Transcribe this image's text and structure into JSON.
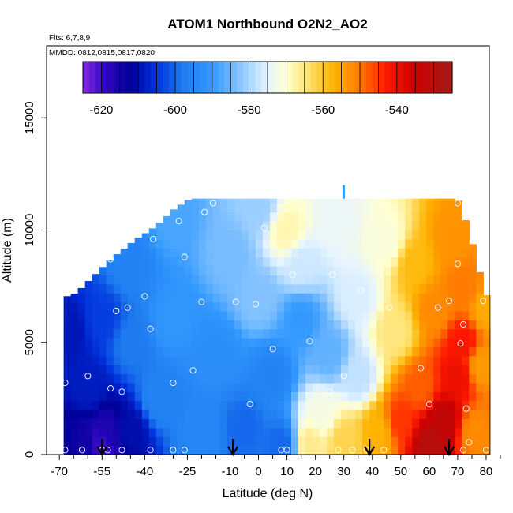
{
  "chart_data": {
    "type": "heatmap",
    "title": "ATOM1 Northbound O2N2_AO2",
    "flights_label": "Flts: 6,7,8,9",
    "dates_label": "MMDD: 0812,0815,0817,0820",
    "xlabel": "Latitude (deg N)",
    "ylabel": "Altitude (m)",
    "xlim": [
      -70,
      85
    ],
    "ylim": [
      0,
      17500
    ],
    "x_ticks": [
      -70,
      -55,
      -40,
      -25,
      -10,
      0,
      10,
      20,
      30,
      40,
      50,
      60,
      70,
      80
    ],
    "x_tick_labels": [
      "-70",
      "-55",
      "-40",
      "-25",
      "-10",
      "0",
      "10",
      "20",
      "30",
      "40",
      "50",
      "60",
      "70",
      "80"
    ],
    "x_minor_ticks": [
      -65,
      -60,
      -50,
      -45,
      -35,
      -30,
      -20,
      -15,
      -5,
      5,
      15,
      25,
      35,
      45,
      55,
      65,
      75,
      85
    ],
    "y_ticks": [
      0,
      5000,
      10000,
      15000
    ],
    "y_tick_labels": [
      "0",
      "5000",
      "10000",
      "15000"
    ],
    "colorbar": {
      "range": [
        -625,
        -525
      ],
      "ticks": [
        -620,
        -600,
        -580,
        -560,
        -540
      ],
      "tick_labels": [
        "-620",
        "-600",
        "-580",
        "-560",
        "-540"
      ],
      "stops": [
        {
          "v": -625,
          "c": "#8a2be2"
        },
        {
          "v": -620,
          "c": "#3a0ac8"
        },
        {
          "v": -612,
          "c": "#000099"
        },
        {
          "v": -605,
          "c": "#0033dd"
        },
        {
          "v": -598,
          "c": "#1e7cf0"
        },
        {
          "v": -590,
          "c": "#3399ff"
        },
        {
          "v": -582,
          "c": "#8ec8ff"
        },
        {
          "v": -575,
          "c": "#e6f4ff"
        },
        {
          "v": -570,
          "c": "#ffffd0"
        },
        {
          "v": -564,
          "c": "#ffe16e"
        },
        {
          "v": -557,
          "c": "#ffb300"
        },
        {
          "v": -550,
          "c": "#ff7a00"
        },
        {
          "v": -543,
          "c": "#ff1a00"
        },
        {
          "v": -535,
          "c": "#cc0000"
        },
        {
          "v": -525,
          "c": "#a31a1a"
        }
      ]
    },
    "profile_arrows_lat": [
      -55,
      -9,
      39,
      67
    ],
    "data_extent": {
      "lat_range": [
        -68.5,
        80.5
      ],
      "top_altitude_by_lat": [
        [
          -68.5,
          7000
        ],
        [
          -64,
          7200
        ],
        [
          -60,
          7700
        ],
        [
          -56,
          8200
        ],
        [
          -52,
          8700
        ],
        [
          -47,
          9200
        ],
        [
          -43,
          9600
        ],
        [
          -38,
          10000
        ],
        [
          -34,
          10400
        ],
        [
          -30,
          10900
        ],
        [
          -24,
          11400
        ],
        [
          70,
          11400
        ],
        [
          74,
          10000
        ],
        [
          78,
          8000
        ],
        [
          80.5,
          7000
        ]
      ]
    },
    "field_anchors": [
      {
        "lat": -68,
        "alt": 300,
        "value": -612
      },
      {
        "lat": -62,
        "alt": 400,
        "value": -614
      },
      {
        "lat": -55,
        "alt": 400,
        "value": -620
      },
      {
        "lat": -53,
        "alt": 800,
        "value": -616
      },
      {
        "lat": -60,
        "alt": 3000,
        "value": -608
      },
      {
        "lat": -66,
        "alt": 5500,
        "value": -609
      },
      {
        "lat": -55,
        "alt": 6000,
        "value": -604
      },
      {
        "lat": -45,
        "alt": 1000,
        "value": -610
      },
      {
        "lat": -45,
        "alt": 5000,
        "value": -598
      },
      {
        "lat": -45,
        "alt": 8500,
        "value": -596
      },
      {
        "lat": -35,
        "alt": 2500,
        "value": -596
      },
      {
        "lat": -30,
        "alt": 6000,
        "value": -591
      },
      {
        "lat": -30,
        "alt": 10500,
        "value": -588
      },
      {
        "lat": -20,
        "alt": 1000,
        "value": -595
      },
      {
        "lat": -15,
        "alt": 4500,
        "value": -593
      },
      {
        "lat": -10,
        "alt": 9000,
        "value": -584
      },
      {
        "lat": -5,
        "alt": 1200,
        "value": -600
      },
      {
        "lat": 0,
        "alt": 7000,
        "value": -583
      },
      {
        "lat": 0,
        "alt": 11000,
        "value": -581
      },
      {
        "lat": 5,
        "alt": 3500,
        "value": -596
      },
      {
        "lat": 8,
        "alt": 500,
        "value": -600
      },
      {
        "lat": 10,
        "alt": 10000,
        "value": -568
      },
      {
        "lat": 15,
        "alt": 6000,
        "value": -590
      },
      {
        "lat": 15,
        "alt": 8500,
        "value": -577
      },
      {
        "lat": 18,
        "alt": 500,
        "value": -566
      },
      {
        "lat": 22,
        "alt": 1800,
        "value": -572
      },
      {
        "lat": 25,
        "alt": 4500,
        "value": -586
      },
      {
        "lat": 28,
        "alt": 10500,
        "value": -574
      },
      {
        "lat": 30,
        "alt": 600,
        "value": -562
      },
      {
        "lat": 35,
        "alt": 3500,
        "value": -578
      },
      {
        "lat": 35,
        "alt": 7000,
        "value": -576
      },
      {
        "lat": 42,
        "alt": 1000,
        "value": -557
      },
      {
        "lat": 45,
        "alt": 9500,
        "value": -571
      },
      {
        "lat": 48,
        "alt": 5500,
        "value": -565
      },
      {
        "lat": 50,
        "alt": 1500,
        "value": -545
      },
      {
        "lat": 55,
        "alt": 8500,
        "value": -558
      },
      {
        "lat": 57,
        "alt": 3000,
        "value": -548
      },
      {
        "lat": 60,
        "alt": 500,
        "value": -530
      },
      {
        "lat": 62,
        "alt": 6500,
        "value": -552
      },
      {
        "lat": 65,
        "alt": 1500,
        "value": -532
      },
      {
        "lat": 68,
        "alt": 9500,
        "value": -553
      },
      {
        "lat": 70,
        "alt": 3500,
        "value": -540
      },
      {
        "lat": 72,
        "alt": 5000,
        "value": -542
      },
      {
        "lat": 72,
        "alt": 7500,
        "value": -550
      },
      {
        "lat": 76,
        "alt": 1000,
        "value": -552
      },
      {
        "lat": 78,
        "alt": 4000,
        "value": -554
      },
      {
        "lat": 80,
        "alt": 6500,
        "value": -556
      }
    ],
    "observation_points": [
      [
        -68,
        200
      ],
      [
        -68,
        3200
      ],
      [
        -60,
        3500
      ],
      [
        -62,
        200
      ],
      [
        -55,
        200
      ],
      [
        -53,
        200
      ],
      [
        -52,
        2950
      ],
      [
        -48,
        200
      ],
      [
        -48,
        2800
      ],
      [
        -50,
        6400
      ],
      [
        -46,
        6550
      ],
      [
        -52,
        8700
      ],
      [
        -40,
        7050
      ],
      [
        -38,
        5600
      ],
      [
        -38,
        200
      ],
      [
        -37,
        9600
      ],
      [
        -30,
        200
      ],
      [
        -30,
        3200
      ],
      [
        -28,
        10400
      ],
      [
        -26,
        8800
      ],
      [
        -26,
        200
      ],
      [
        -23,
        3750
      ],
      [
        -20,
        6800
      ],
      [
        -19,
        10800
      ],
      [
        -16,
        11200
      ],
      [
        -8,
        6800
      ],
      [
        -3,
        2250
      ],
      [
        -1,
        6700
      ],
      [
        2,
        10100
      ],
      [
        5,
        4700
      ],
      [
        8,
        200
      ],
      [
        10,
        200
      ],
      [
        12,
        8000
      ],
      [
        18,
        5050
      ],
      [
        25,
        2800
      ],
      [
        26,
        8000
      ],
      [
        28,
        200
      ],
      [
        30,
        3500
      ],
      [
        33,
        200
      ],
      [
        36,
        7300
      ],
      [
        38,
        200
      ],
      [
        42,
        9600
      ],
      [
        44,
        200
      ],
      [
        46,
        6550
      ],
      [
        57,
        3850
      ],
      [
        60,
        2250
      ],
      [
        63,
        6550
      ],
      [
        67,
        6850
      ],
      [
        70,
        8500
      ],
      [
        71,
        4950
      ],
      [
        72,
        5800
      ],
      [
        73,
        2050
      ],
      [
        72,
        200
      ],
      [
        74,
        550
      ],
      [
        79,
        6850
      ],
      [
        80,
        200
      ],
      [
        70,
        11200
      ]
    ]
  }
}
